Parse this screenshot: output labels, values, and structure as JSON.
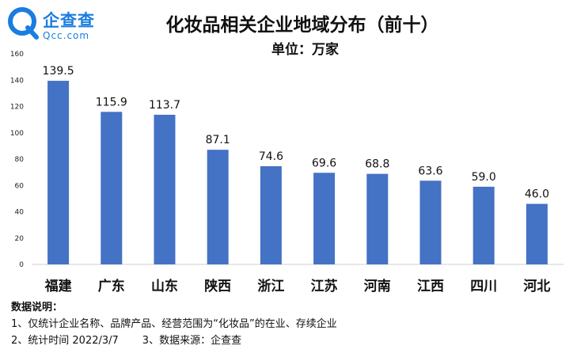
{
  "logo": {
    "name": "企查查",
    "domain": "Qcc.com",
    "brand_color": "#1a7de0"
  },
  "title": "化妆品相关企业地域分布（前十）",
  "unit": "单位：万家",
  "chart_data": {
    "type": "bar",
    "categories": [
      "福建",
      "广东",
      "山东",
      "陕西",
      "浙江",
      "江苏",
      "河南",
      "江西",
      "四川",
      "河北"
    ],
    "values": [
      139.5,
      115.9,
      113.7,
      87.1,
      74.6,
      69.6,
      68.8,
      63.6,
      59.0,
      46.0
    ],
    "value_labels": [
      "139.5",
      "115.9",
      "113.7",
      "87.1",
      "74.6",
      "69.6",
      "68.8",
      "63.6",
      "59.0",
      "46.0"
    ],
    "ylim": [
      0,
      160
    ],
    "yticks": [
      0,
      20,
      40,
      60,
      80,
      100,
      120,
      140,
      160
    ],
    "grid": false,
    "bar_color": "#4472c4"
  },
  "notes": {
    "heading": "数据说明：",
    "line1": "1、仅统计企业名称、品牌产品、经营范围为“化妆品”的在业、存续企业",
    "line2a": "2、统计时间 2022/3/7",
    "line2b": "3、数据来源：企查查"
  }
}
